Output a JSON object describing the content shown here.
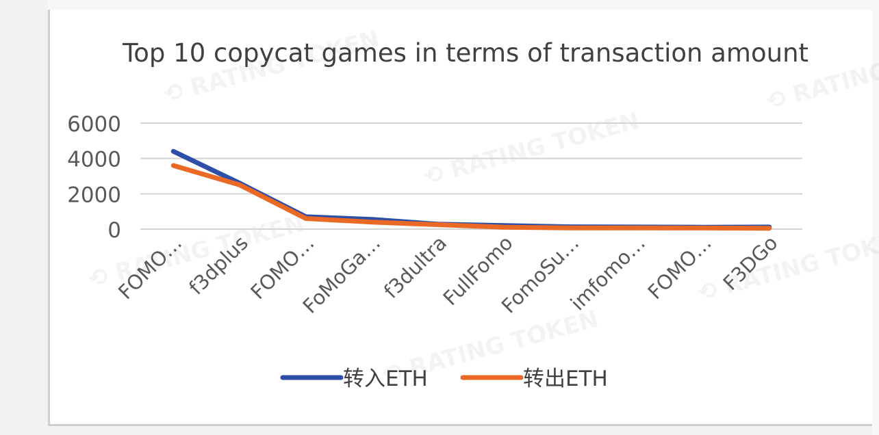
{
  "chart_data": {
    "type": "line",
    "title": "Top 10 copycat games in terms of transaction amount",
    "categories": [
      "FOMO…",
      "f3dplus",
      "FOMO…",
      "FoMoGa…",
      "f3dultra",
      "FullFomo",
      "FomoSu…",
      "imfomo…",
      "FOMO…",
      "F3DGo"
    ],
    "y_ticks": [
      "6000",
      "4000",
      "2000",
      "0"
    ],
    "ylim": [
      0,
      6000
    ],
    "grid": true,
    "legend_position": "bottom",
    "series": [
      {
        "name": "转入ETH",
        "color": "#2e4fa8",
        "values": [
          4400,
          2600,
          700,
          550,
          280,
          200,
          130,
          120,
          110,
          120
        ]
      },
      {
        "name": "转出ETH",
        "color": "#ea6a25",
        "values": [
          3600,
          2500,
          600,
          400,
          250,
          110,
          70,
          70,
          60,
          50
        ]
      }
    ]
  },
  "watermark_text": "RATING TOKEN"
}
